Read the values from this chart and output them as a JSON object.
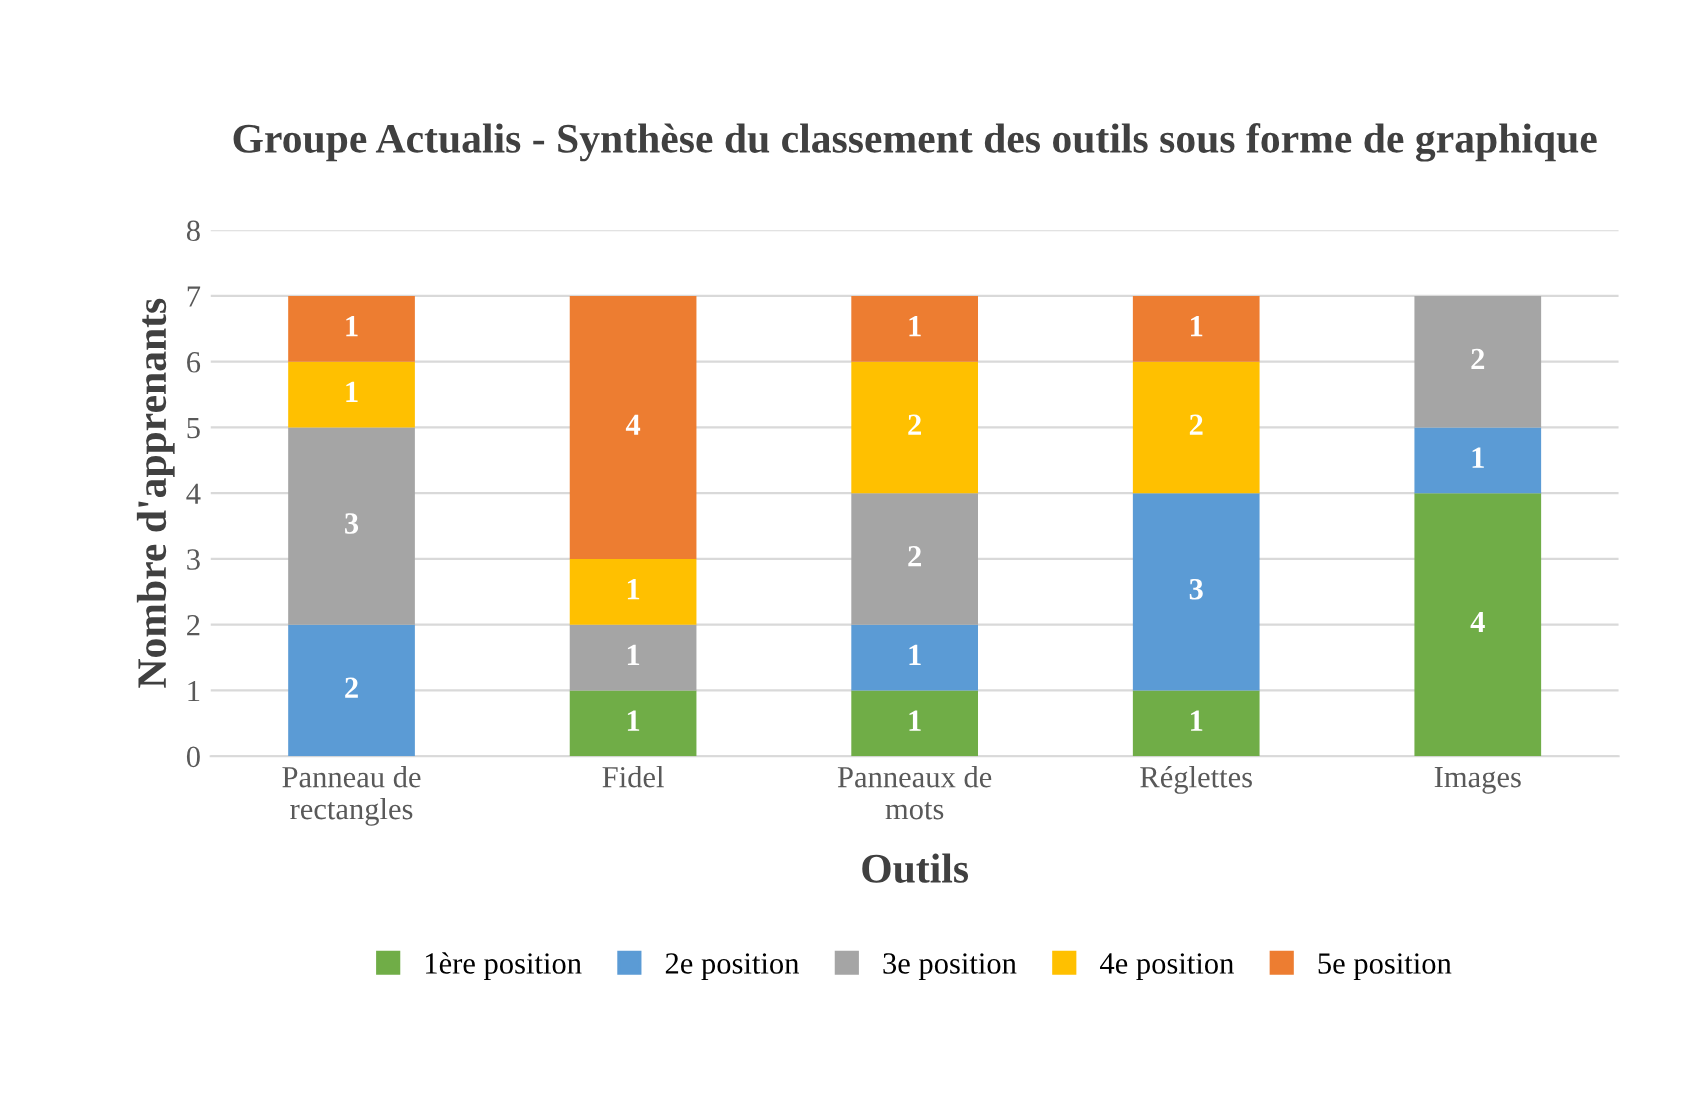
{
  "chart_data": {
    "type": "bar",
    "stacked": true,
    "title": "Groupe Actualis - Synthèse du classement des outils sous forme de graphique",
    "xlabel": "Outils",
    "ylabel": "Nombre d'apprenants",
    "categories": [
      "Panneau de\nrectangles",
      "Fidel",
      "Panneaux de\nmots",
      "Réglettes",
      "Images"
    ],
    "series": [
      {
        "name": "1ère position",
        "color": "#70ad47",
        "values": [
          null,
          1,
          1,
          1,
          4
        ]
      },
      {
        "name": "2e position",
        "color": "#5b9bd5",
        "values": [
          2,
          null,
          1,
          3,
          1
        ]
      },
      {
        "name": "3e position",
        "color": "#a5a5a5",
        "values": [
          3,
          1,
          2,
          null,
          2
        ]
      },
      {
        "name": "4e position",
        "color": "#ffc000",
        "values": [
          1,
          1,
          2,
          2,
          null
        ]
      },
      {
        "name": "5e position",
        "color": "#ed7d31",
        "values": [
          1,
          4,
          1,
          1,
          null
        ]
      }
    ],
    "ylim": [
      0,
      8
    ],
    "yticks": [
      0,
      1,
      2,
      3,
      4,
      5,
      6,
      7,
      8
    ],
    "grid": "y",
    "legend": "bottom",
    "data_labels": true
  }
}
